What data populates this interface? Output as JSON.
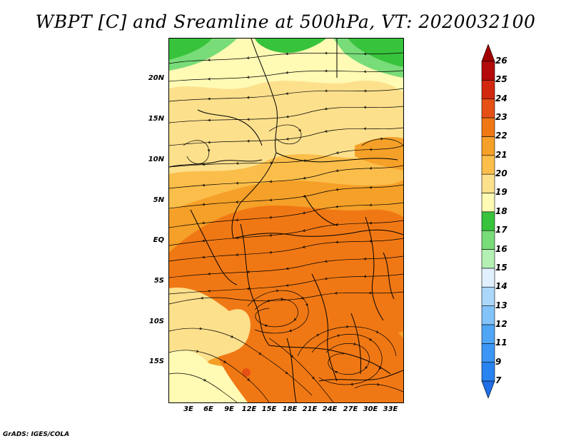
{
  "title": "WBPT [C] and Sreamline at 500hPa, VT: 2020032100",
  "footer": "GrADS: IGES/COLA",
  "latitude_labels": [
    "20N",
    "15N",
    "10N",
    "5N",
    "EQ",
    "5S",
    "10S",
    "15S"
  ],
  "longitude_labels": [
    "3E",
    "6E",
    "9E",
    "12E",
    "15E",
    "18E",
    "21E",
    "24E",
    "27E",
    "30E",
    "33E"
  ],
  "colorbar": {
    "labels": [
      "7",
      "9",
      "11",
      "12",
      "13",
      "14",
      "15",
      "16",
      "17",
      "18",
      "19",
      "20",
      "21",
      "22",
      "23",
      "24",
      "25",
      "26"
    ],
    "colors": [
      "#1e6ee6",
      "#2882f0",
      "#3c96f5",
      "#50a5f5",
      "#82c3fa",
      "#aad7fa",
      "#e1f0ff",
      "#b4f0b4",
      "#78dc78",
      "#37c33c",
      "#fffab4",
      "#fde08c",
      "#fbbe4b",
      "#f5a028",
      "#f07814",
      "#e65014",
      "#d2280f",
      "#b40a0a",
      "#a00000"
    ]
  },
  "map": {
    "field_colors": {
      "green_dark": "#37c33c",
      "green_light": "#78dc78",
      "pale_yellow": "#fffab4",
      "yellow": "#fde08c",
      "orange_light": "#fbbe4b",
      "orange": "#f5a028",
      "orange_dark": "#f07814",
      "red_orange": "#e65014"
    },
    "streamline_color": "#000000",
    "boundary_color": "#000000"
  }
}
